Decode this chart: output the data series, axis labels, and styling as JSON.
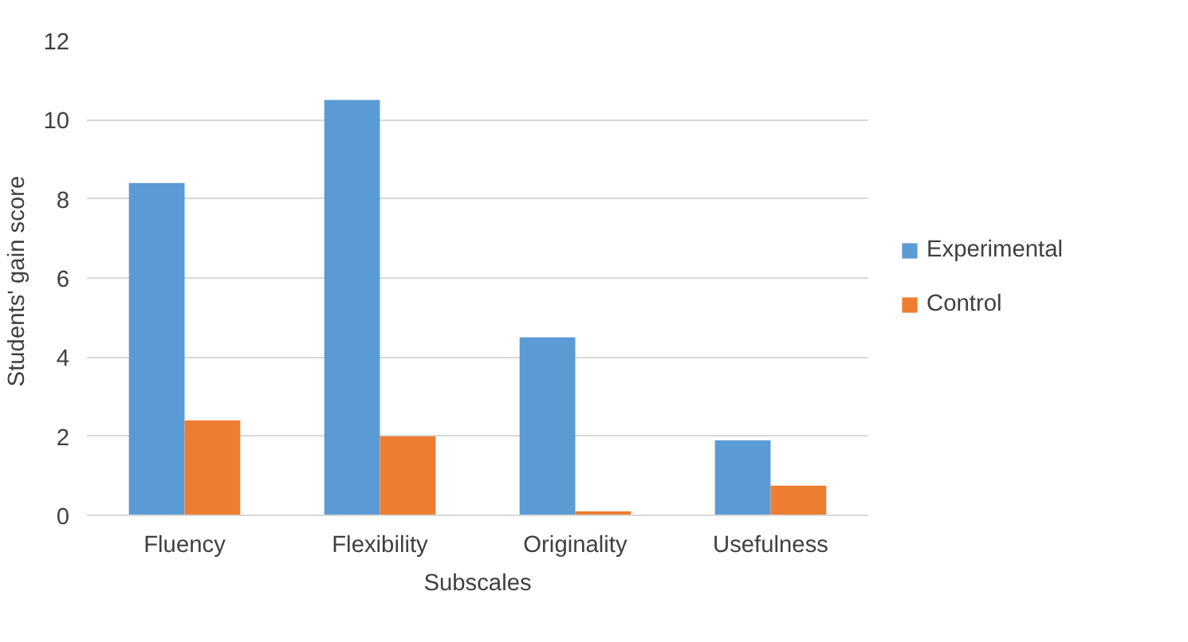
{
  "chart_data": {
    "type": "bar",
    "xlabel": "Subscales",
    "ylabel": "Students'  gain score",
    "categories": [
      "Fluency",
      "Flexibility",
      "Originality",
      "Usefulness"
    ],
    "series": [
      {
        "name": "Experimental",
        "color": "#5b9bd5",
        "values": [
          8.4,
          10.5,
          4.5,
          1.9
        ]
      },
      {
        "name": "Control",
        "color": "#ed7d31",
        "values": [
          2.4,
          2.0,
          0.1,
          0.75
        ]
      }
    ],
    "ylim": [
      0,
      12
    ],
    "yticks": [
      0,
      2,
      4,
      6,
      8,
      10,
      12
    ],
    "grid": "y",
    "legend": "right"
  }
}
